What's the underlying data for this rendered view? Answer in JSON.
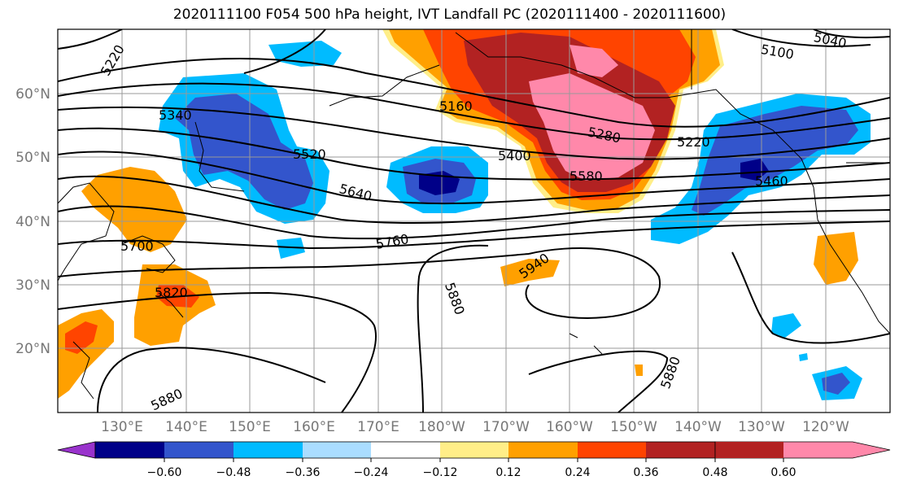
{
  "title": "2020111100 F054 500 hPa height, IVT Landfall PC (2020111400 - 2020111600)",
  "map": {
    "lat_labels": [
      "60°N",
      "50°N",
      "40°N",
      "30°N",
      "20°N"
    ],
    "lon_labels": [
      "130°E",
      "140°E",
      "150°E",
      "160°E",
      "170°E",
      "180°W",
      "170°W",
      "160°W",
      "150°W",
      "140°W",
      "130°W",
      "120°W"
    ],
    "contour_labels": [
      "5220",
      "5340",
      "5520",
      "5640",
      "5700",
      "5760",
      "5820",
      "5880",
      "5880",
      "5940",
      "5160",
      "5400",
      "5280",
      "5580",
      "5220",
      "5460",
      "5100",
      "5040",
      "5880"
    ]
  },
  "colorbar": {
    "ticks": [
      "−0.60",
      "−0.48",
      "−0.36",
      "−0.24",
      "−0.12",
      "0.12",
      "0.24",
      "0.36",
      "0.48",
      "0.60"
    ],
    "colors": [
      "#9933cc",
      "#000088",
      "#3355cc",
      "#00bbff",
      "#aaddff",
      "#ffffff",
      "#ffee88",
      "#ffa000",
      "#ff4400",
      "#b22222",
      "#ff88aa"
    ],
    "extend": "both"
  }
}
